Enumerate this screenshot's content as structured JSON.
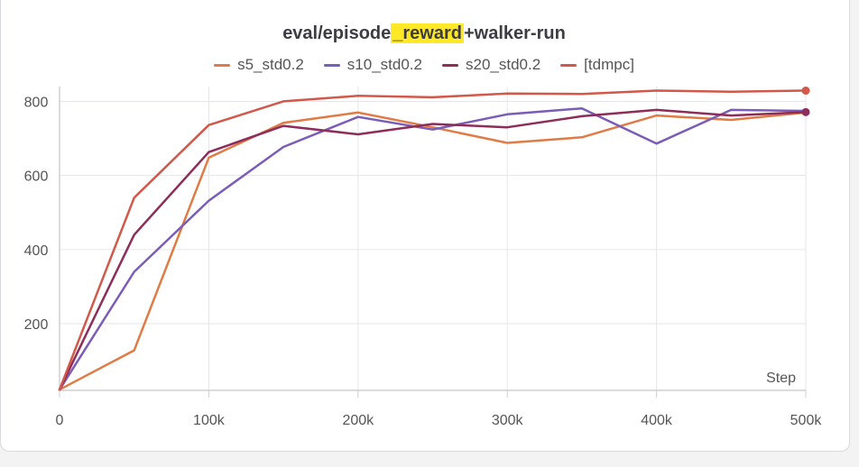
{
  "chart_data": {
    "type": "line",
    "title_before": "eval/episode",
    "title_highlight": "_reward",
    "title_after": "+walker-run",
    "xlabel": "Step",
    "ylabel": "",
    "xlim": [
      0,
      500000
    ],
    "ylim": [
      20,
      840
    ],
    "x_ticks": [
      0,
      100000,
      200000,
      300000,
      400000,
      500000
    ],
    "x_tick_labels": [
      "0",
      "100k",
      "200k",
      "300k",
      "400k",
      "500k"
    ],
    "y_ticks": [
      200,
      400,
      600,
      800
    ],
    "y_tick_labels": [
      "200",
      "400",
      "600",
      "800"
    ],
    "grid": true,
    "legend_position": "top-center",
    "x": [
      0,
      50000,
      100000,
      150000,
      200000,
      250000,
      300000,
      350000,
      400000,
      450000,
      500000
    ],
    "series": [
      {
        "name": "s5_std0.2",
        "color": "#e07b45",
        "values": [
          22,
          128,
          648,
          742,
          770,
          730,
          688,
          703,
          762,
          750,
          770
        ],
        "end_dot": false
      },
      {
        "name": "s10_std0.2",
        "color": "#7b5cb8",
        "values": [
          22,
          340,
          532,
          677,
          758,
          724,
          765,
          781,
          686,
          777,
          774
        ],
        "end_dot": false
      },
      {
        "name": "s20_std0.2",
        "color": "#8e2c5a",
        "values": [
          22,
          440,
          663,
          734,
          711,
          739,
          730,
          760,
          777,
          762,
          771
        ],
        "end_dot": true
      },
      {
        "name": "[tdmpc]",
        "color": "#d2584a",
        "values": [
          22,
          540,
          736,
          800,
          815,
          811,
          821,
          820,
          829,
          826,
          829
        ],
        "end_dot": true
      }
    ]
  }
}
